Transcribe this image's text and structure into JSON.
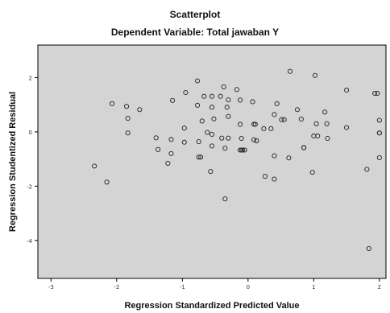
{
  "chart_data": {
    "type": "scatter",
    "title": "Scatterplot",
    "subtitle": "Dependent Variable: Total jawaban Y",
    "xlabel": "Regression Standardized Predicted Value",
    "ylabel": "Regression Studentized Residual",
    "xlim": [
      -3.2,
      2.1
    ],
    "ylim": [
      -5.4,
      3.2
    ],
    "xticks": [
      -3,
      -2,
      -1,
      0,
      1,
      2
    ],
    "xtick_labels": [
      "-3",
      "-2",
      "-1",
      "0",
      "1",
      "2"
    ],
    "yticks": [
      2,
      0,
      -2,
      -4
    ],
    "ytick_labels": [
      "2",
      "0",
      "-2",
      "-4"
    ],
    "grid": false,
    "background": "#d4d4d4",
    "marker": "open-circle",
    "points": [
      {
        "x": -2.34,
        "y": -1.26
      },
      {
        "x": -2.15,
        "y": -1.85
      },
      {
        "x": -2.07,
        "y": 1.04
      },
      {
        "x": -1.85,
        "y": 0.94
      },
      {
        "x": -1.83,
        "y": 0.5
      },
      {
        "x": -1.83,
        "y": -0.04
      },
      {
        "x": -1.65,
        "y": 0.82
      },
      {
        "x": -1.4,
        "y": -0.22
      },
      {
        "x": -1.37,
        "y": -0.65
      },
      {
        "x": -1.22,
        "y": -1.16
      },
      {
        "x": -1.17,
        "y": -0.28
      },
      {
        "x": -1.17,
        "y": -0.8
      },
      {
        "x": -1.15,
        "y": 1.16
      },
      {
        "x": -0.97,
        "y": 0.14
      },
      {
        "x": -0.97,
        "y": -0.38
      },
      {
        "x": -0.95,
        "y": 1.45
      },
      {
        "x": -0.77,
        "y": 1.88
      },
      {
        "x": -0.77,
        "y": 0.98
      },
      {
        "x": -0.75,
        "y": -0.36
      },
      {
        "x": -0.75,
        "y": -0.93
      },
      {
        "x": -0.72,
        "y": -0.93
      },
      {
        "x": -0.7,
        "y": 0.4
      },
      {
        "x": -0.67,
        "y": 1.31
      },
      {
        "x": -0.62,
        "y": -0.02
      },
      {
        "x": -0.57,
        "y": -1.46
      },
      {
        "x": -0.55,
        "y": 1.31
      },
      {
        "x": -0.55,
        "y": -0.09
      },
      {
        "x": -0.55,
        "y": -0.52
      },
      {
        "x": -0.55,
        "y": 0.91
      },
      {
        "x": -0.52,
        "y": 0.48
      },
      {
        "x": -0.42,
        "y": 1.31
      },
      {
        "x": -0.4,
        "y": -0.23
      },
      {
        "x": -0.37,
        "y": 1.66
      },
      {
        "x": -0.35,
        "y": -2.47
      },
      {
        "x": -0.35,
        "y": -0.6
      },
      {
        "x": -0.32,
        "y": 0.91
      },
      {
        "x": -0.3,
        "y": 1.18
      },
      {
        "x": -0.3,
        "y": 0.57
      },
      {
        "x": -0.3,
        "y": -0.23
      },
      {
        "x": -0.17,
        "y": 1.56
      },
      {
        "x": -0.12,
        "y": 1.17
      },
      {
        "x": -0.12,
        "y": 0.28
      },
      {
        "x": -0.12,
        "y": -0.67
      },
      {
        "x": -0.1,
        "y": -0.67
      },
      {
        "x": -0.1,
        "y": -0.24
      },
      {
        "x": -0.08,
        "y": -0.67
      },
      {
        "x": -0.05,
        "y": -0.67
      },
      {
        "x": 0.07,
        "y": 1.11
      },
      {
        "x": 0.09,
        "y": 0.28
      },
      {
        "x": 0.09,
        "y": -0.29
      },
      {
        "x": 0.11,
        "y": 0.28
      },
      {
        "x": 0.13,
        "y": -0.33
      },
      {
        "x": 0.24,
        "y": 0.12
      },
      {
        "x": 0.26,
        "y": -1.64
      },
      {
        "x": 0.35,
        "y": 0.12
      },
      {
        "x": 0.4,
        "y": -1.74
      },
      {
        "x": 0.4,
        "y": 0.64
      },
      {
        "x": 0.4,
        "y": -0.88
      },
      {
        "x": 0.44,
        "y": 1.04
      },
      {
        "x": 0.51,
        "y": 0.45
      },
      {
        "x": 0.55,
        "y": 0.45
      },
      {
        "x": 0.62,
        "y": -0.96
      },
      {
        "x": 0.64,
        "y": 2.23
      },
      {
        "x": 0.75,
        "y": 0.82
      },
      {
        "x": 0.81,
        "y": 0.47
      },
      {
        "x": 0.85,
        "y": -0.58
      },
      {
        "x": 0.85,
        "y": -0.58
      },
      {
        "x": 0.98,
        "y": -1.49
      },
      {
        "x": 1.0,
        "y": -0.15
      },
      {
        "x": 1.02,
        "y": 2.08
      },
      {
        "x": 1.04,
        "y": 0.3
      },
      {
        "x": 1.06,
        "y": -0.15
      },
      {
        "x": 1.17,
        "y": 0.73
      },
      {
        "x": 1.2,
        "y": 0.3
      },
      {
        "x": 1.21,
        "y": -0.24
      },
      {
        "x": 1.5,
        "y": 1.54
      },
      {
        "x": 1.5,
        "y": 0.16
      },
      {
        "x": 1.81,
        "y": -1.38
      },
      {
        "x": 1.84,
        "y": -4.3
      },
      {
        "x": 1.93,
        "y": 1.42
      },
      {
        "x": 1.97,
        "y": 1.42
      },
      {
        "x": 2.0,
        "y": -0.04
      },
      {
        "x": 2.0,
        "y": -0.04
      },
      {
        "x": 2.0,
        "y": 0.43
      },
      {
        "x": 2.0,
        "y": -0.95
      }
    ]
  }
}
